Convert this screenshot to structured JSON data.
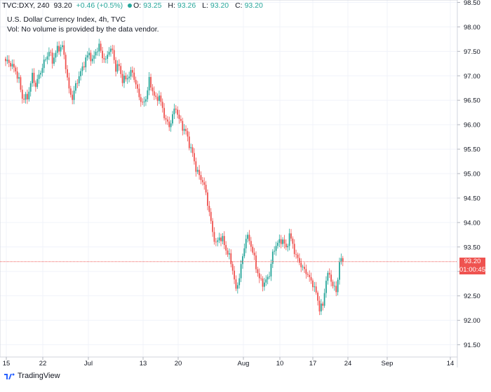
{
  "header": {
    "symbol": "TVC:DXY, 240",
    "price": "93.20",
    "change": "+0.46 (+0.5%)",
    "o_label": "O:",
    "o_value": "93.25",
    "h_label": "H:",
    "h_value": "93.26",
    "l_label": "L:",
    "l_value": "93.20",
    "c_label": "C:",
    "c_value": "93.20"
  },
  "legend": {
    "title": "U.S. Dollar Currency Index, 4h, TVC",
    "volume_note": "Vol: No volume is provided by the data vendor."
  },
  "price_tag": {
    "price": "93.20",
    "countdown": "01:00:45"
  },
  "footer": {
    "brand": "TradingView",
    "logo_icon": "tradingview-logo-icon"
  },
  "colors": {
    "up": "#26a69a",
    "down": "#ef5350",
    "grid": "#f0f3fa",
    "axis_text": "#131722"
  },
  "chart_data": {
    "type": "candlestick",
    "title": "U.S. Dollar Currency Index, 4h, TVC",
    "ylim": [
      91.25,
      98.55
    ],
    "y_ticks": [
      "91.50",
      "92.00",
      "92.50",
      "93.00",
      "93.50",
      "94.00",
      "94.50",
      "95.00",
      "95.50",
      "96.00",
      "96.50",
      "97.00",
      "97.50",
      "98.00",
      "98.50"
    ],
    "x_ticks": [
      "15",
      "22",
      "Jul",
      "13",
      "20",
      "Aug",
      "10",
      "17",
      "24",
      "Sep",
      "14"
    ],
    "current_price": 93.2,
    "grid": true,
    "close_path": [
      [
        0,
        97.3
      ],
      [
        3,
        97.25
      ],
      [
        6,
        97.1
      ],
      [
        8,
        96.9
      ],
      [
        10,
        96.55
      ],
      [
        13,
        96.55
      ],
      [
        16,
        97.0
      ],
      [
        18,
        96.8
      ],
      [
        21,
        97.1
      ],
      [
        24,
        97.35
      ],
      [
        26,
        97.5
      ],
      [
        28,
        97.3
      ],
      [
        31,
        97.55
      ],
      [
        34,
        97.6
      ],
      [
        36,
        97.2
      ],
      [
        38,
        96.7
      ],
      [
        40,
        96.55
      ],
      [
        42,
        96.8
      ],
      [
        44,
        97.0
      ],
      [
        46,
        97.15
      ],
      [
        48,
        97.35
      ],
      [
        50,
        97.45
      ],
      [
        52,
        97.3
      ],
      [
        54,
        97.5
      ],
      [
        56,
        97.6
      ],
      [
        58,
        97.4
      ],
      [
        60,
        97.3
      ],
      [
        62,
        97.55
      ],
      [
        64,
        97.5
      ],
      [
        66,
        97.15
      ],
      [
        68,
        97.2
      ],
      [
        70,
        96.9
      ],
      [
        72,
        96.95
      ],
      [
        74,
        97.0
      ],
      [
        76,
        97.1
      ],
      [
        78,
        96.8
      ],
      [
        80,
        96.6
      ],
      [
        82,
        96.4
      ],
      [
        84,
        96.55
      ],
      [
        86,
        96.9
      ],
      [
        88,
        96.7
      ],
      [
        90,
        96.5
      ],
      [
        92,
        96.6
      ],
      [
        94,
        96.3
      ],
      [
        96,
        96.1
      ],
      [
        98,
        95.95
      ],
      [
        100,
        96.2
      ],
      [
        102,
        96.35
      ],
      [
        104,
        96.1
      ],
      [
        106,
        95.95
      ],
      [
        108,
        95.85
      ],
      [
        110,
        95.6
      ],
      [
        112,
        95.4
      ],
      [
        114,
        95.1
      ],
      [
        116,
        94.95
      ],
      [
        118,
        94.85
      ],
      [
        120,
        94.6
      ],
      [
        122,
        94.2
      ],
      [
        124,
        93.8
      ],
      [
        126,
        93.55
      ],
      [
        128,
        93.7
      ],
      [
        130,
        93.65
      ],
      [
        132,
        93.45
      ],
      [
        134,
        93.3
      ],
      [
        136,
        93.05
      ],
      [
        138,
        92.6
      ],
      [
        140,
        92.9
      ],
      [
        142,
        93.3
      ],
      [
        144,
        93.7
      ],
      [
        146,
        93.65
      ],
      [
        148,
        93.4
      ],
      [
        150,
        93.1
      ],
      [
        152,
        92.85
      ],
      [
        154,
        92.75
      ],
      [
        156,
        92.8
      ],
      [
        158,
        92.95
      ],
      [
        160,
        93.35
      ],
      [
        162,
        93.55
      ],
      [
        164,
        93.6
      ],
      [
        166,
        93.65
      ],
      [
        168,
        93.45
      ],
      [
        170,
        93.75
      ],
      [
        172,
        93.55
      ],
      [
        174,
        93.3
      ],
      [
        176,
        93.2
      ],
      [
        178,
        93.05
      ],
      [
        180,
        93.0
      ],
      [
        182,
        92.85
      ],
      [
        184,
        92.75
      ],
      [
        186,
        92.55
      ],
      [
        188,
        92.25
      ],
      [
        190,
        92.3
      ],
      [
        192,
        92.85
      ],
      [
        194,
        92.95
      ],
      [
        196,
        92.7
      ],
      [
        198,
        92.6
      ],
      [
        200,
        93.15
      ],
      [
        201,
        93.25
      ],
      [
        202,
        93.2
      ]
    ]
  }
}
